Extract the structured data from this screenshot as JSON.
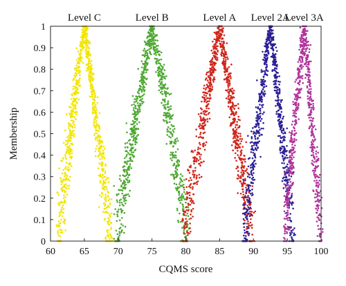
{
  "chart_data": {
    "type": "scatter",
    "xlabel": "CQMS score",
    "ylabel": "Membership",
    "xlim": [
      60,
      100
    ],
    "ylim": [
      0,
      1
    ],
    "x_ticks": [
      60,
      65,
      70,
      75,
      80,
      85,
      90,
      95,
      100
    ],
    "y_ticks": [
      0,
      0.1,
      0.2,
      0.3,
      0.4,
      0.5,
      0.6,
      0.7,
      0.8,
      0.9,
      1
    ],
    "y_tick_labels": [
      "0",
      "0.1",
      "0.2",
      "0.3",
      "0.4",
      "0.5",
      "0.6",
      "0.7",
      "0.8",
      "0.9",
      "1"
    ],
    "grid": false,
    "series": [
      {
        "name": "Level C",
        "peak": 65,
        "left": 61,
        "right": 69,
        "color": "#f2e600",
        "n": 900
      },
      {
        "name": "Level B",
        "peak": 75,
        "left": 69.5,
        "right": 80.5,
        "color": "#4ea832",
        "n": 900
      },
      {
        "name": "Level A",
        "peak": 85,
        "left": 79.5,
        "right": 90,
        "color": "#d0251a",
        "n": 900
      },
      {
        "name": "Level 2A",
        "peak": 92.5,
        "left": 88.5,
        "right": 96,
        "color": "#2c1f96",
        "n": 800
      },
      {
        "name": "Level 3A",
        "peak": 97.5,
        "left": 94.5,
        "right": 100,
        "color": "#b0349c",
        "n": 700
      }
    ]
  }
}
